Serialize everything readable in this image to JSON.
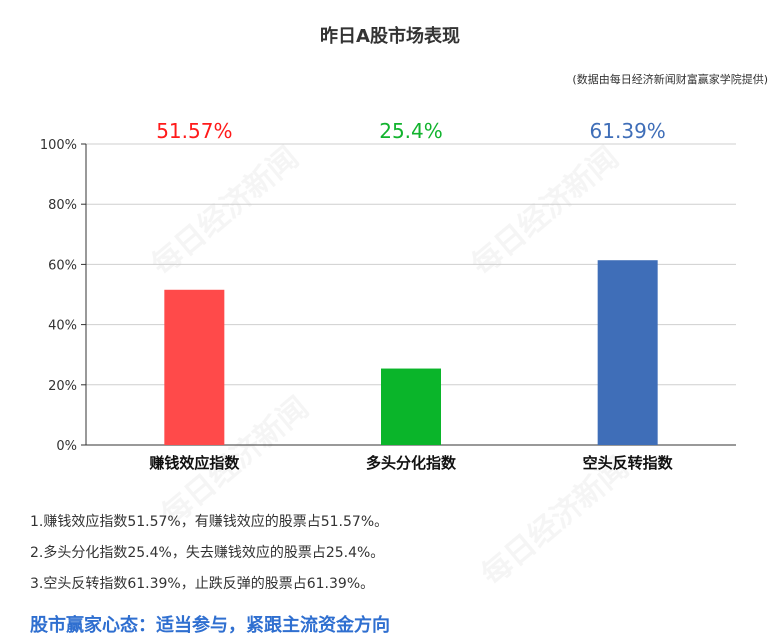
{
  "chart_data": {
    "type": "bar",
    "title": "昨日A股市场表现",
    "source_note": "(数据由每日经济新闻财富赢家学院提供)",
    "categories": [
      "赚钱效应指数",
      "多头分化指数",
      "空头反转指数"
    ],
    "values": [
      51.57,
      25.4,
      61.39
    ],
    "value_labels": [
      "51.57%",
      "25.4%",
      "61.39%"
    ],
    "colors": [
      "#ff4a4a",
      "#0ab52a",
      "#3f6eb8"
    ],
    "label_colors": [
      "#ff1a1a",
      "#12b32e",
      "#3f6eb8"
    ],
    "ylim": [
      0,
      100
    ],
    "yticks": [
      "0%",
      "20%",
      "40%",
      "60%",
      "80%",
      "100%"
    ],
    "grid": true,
    "xlabel": "",
    "ylabel": ""
  },
  "notes": [
    "1.赚钱效应指数51.57%，有赚钱效应的股票占51.57%。",
    "2.多头分化指数25.4%，失去赚钱效应的股票占25.4%。",
    "3.空头反转指数61.39%，止跌反弹的股票占61.39%。"
  ],
  "footer": "股市赢家心态：适当参与，紧跟主流资金方向",
  "watermark": "每日经济新闻"
}
